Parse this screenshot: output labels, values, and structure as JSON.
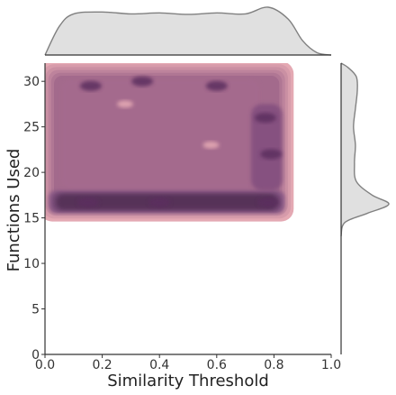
{
  "chart_data": {
    "type": "kde-joint",
    "xlabel": "Similarity Threshold",
    "ylabel": "Functions Used",
    "xlim": [
      0.0,
      1.0
    ],
    "ylim": [
      0,
      32
    ],
    "x_ticks": [
      "0.0",
      "0.2",
      "0.4",
      "0.6",
      "0.8",
      "1.0"
    ],
    "y_ticks": [
      "0",
      "5",
      "10",
      "15",
      "20",
      "25",
      "30"
    ],
    "x_support": [
      0.0,
      0.85
    ],
    "y_support": [
      15,
      32
    ],
    "high_density_band_y": [
      15.5,
      18
    ],
    "hot_spots": [
      {
        "x": 0.16,
        "y": 29.5
      },
      {
        "x": 0.34,
        "y": 30
      },
      {
        "x": 0.6,
        "y": 29.5
      },
      {
        "x": 0.77,
        "y": 26
      },
      {
        "x": 0.79,
        "y": 22
      },
      {
        "x": 0.78,
        "y": 16.7
      },
      {
        "x": 0.15,
        "y": 16.7
      },
      {
        "x": 0.4,
        "y": 16.7
      }
    ],
    "marginal_x_density": [
      [
        0.0,
        0.0
      ],
      [
        0.05,
        0.6
      ],
      [
        0.1,
        0.86
      ],
      [
        0.2,
        0.9
      ],
      [
        0.3,
        0.86
      ],
      [
        0.4,
        0.88
      ],
      [
        0.5,
        0.85
      ],
      [
        0.6,
        0.88
      ],
      [
        0.7,
        0.86
      ],
      [
        0.78,
        1.0
      ],
      [
        0.85,
        0.75
      ],
      [
        0.9,
        0.3
      ],
      [
        0.95,
        0.05
      ],
      [
        1.0,
        0.0
      ]
    ],
    "marginal_y_density": [
      [
        13,
        0.0
      ],
      [
        14.5,
        0.08
      ],
      [
        15.5,
        0.55
      ],
      [
        16.5,
        1.0
      ],
      [
        17.5,
        0.65
      ],
      [
        19,
        0.32
      ],
      [
        21,
        0.28
      ],
      [
        23,
        0.3
      ],
      [
        25,
        0.26
      ],
      [
        27,
        0.3
      ],
      [
        29,
        0.34
      ],
      [
        30.5,
        0.32
      ],
      [
        31.5,
        0.15
      ],
      [
        32,
        0.0
      ]
    ],
    "colors": {
      "fill_light": "#e4a9b3",
      "fill_dark": "#3d1b43",
      "marginal_fill": "#e0e0e0",
      "marginal_line": "#808080",
      "axis": "#333333"
    },
    "grid": false,
    "legend": false
  }
}
